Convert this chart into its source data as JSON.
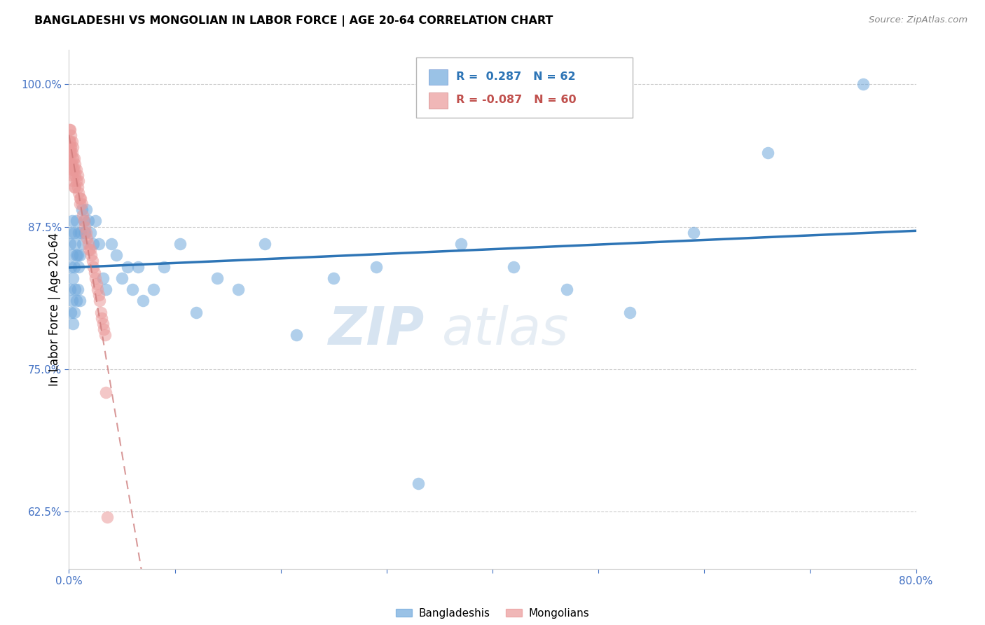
{
  "title": "BANGLADESHI VS MONGOLIAN IN LABOR FORCE | AGE 20-64 CORRELATION CHART",
  "source": "Source: ZipAtlas.com",
  "ylabel": "In Labor Force | Age 20-64",
  "x_min": 0.0,
  "x_max": 0.8,
  "y_min": 0.575,
  "y_max": 1.03,
  "x_ticks": [
    0.0,
    0.1,
    0.2,
    0.3,
    0.4,
    0.5,
    0.6,
    0.7,
    0.8
  ],
  "x_tick_labels": [
    "0.0%",
    "",
    "",
    "",
    "",
    "",
    "",
    "",
    "80.0%"
  ],
  "y_ticks": [
    0.625,
    0.75,
    0.875,
    1.0
  ],
  "y_tick_labels": [
    "62.5%",
    "75.0%",
    "87.5%",
    "100.0%"
  ],
  "bangladeshi_color": "#6fa8dc",
  "bangladeshi_edge": "#4a86c8",
  "mongolian_color": "#ea9999",
  "mongolian_edge": "#d06060",
  "trend_blue": "#2e75b6",
  "trend_pink": "#cc7777",
  "watermark_zip": "ZIP",
  "watermark_atlas": "atlas",
  "legend_r_blue": " 0.287",
  "legend_n_blue": "62",
  "legend_r_pink": "-0.087",
  "legend_n_pink": "60",
  "legend_label_blue": "Bangladeshis",
  "legend_label_pink": "Mongolians",
  "bangladeshi_x": [
    0.001,
    0.001,
    0.002,
    0.002,
    0.002,
    0.003,
    0.003,
    0.003,
    0.004,
    0.004,
    0.005,
    0.005,
    0.005,
    0.006,
    0.006,
    0.007,
    0.007,
    0.007,
    0.008,
    0.008,
    0.009,
    0.009,
    0.01,
    0.01,
    0.011,
    0.012,
    0.013,
    0.014,
    0.015,
    0.016,
    0.018,
    0.02,
    0.023,
    0.025,
    0.028,
    0.032,
    0.035,
    0.04,
    0.045,
    0.05,
    0.055,
    0.06,
    0.065,
    0.07,
    0.08,
    0.09,
    0.105,
    0.12,
    0.14,
    0.16,
    0.185,
    0.215,
    0.25,
    0.29,
    0.33,
    0.37,
    0.42,
    0.47,
    0.53,
    0.59,
    0.66,
    0.75
  ],
  "bangladeshi_y": [
    0.82,
    0.86,
    0.8,
    0.84,
    0.87,
    0.81,
    0.85,
    0.88,
    0.79,
    0.83,
    0.8,
    0.84,
    0.87,
    0.82,
    0.86,
    0.81,
    0.85,
    0.88,
    0.82,
    0.85,
    0.84,
    0.87,
    0.81,
    0.85,
    0.87,
    0.89,
    0.86,
    0.88,
    0.87,
    0.89,
    0.88,
    0.87,
    0.86,
    0.88,
    0.86,
    0.83,
    0.82,
    0.86,
    0.85,
    0.83,
    0.84,
    0.82,
    0.84,
    0.81,
    0.82,
    0.84,
    0.86,
    0.8,
    0.83,
    0.82,
    0.86,
    0.78,
    0.83,
    0.84,
    0.65,
    0.86,
    0.84,
    0.82,
    0.8,
    0.87,
    0.94,
    1.0
  ],
  "mongolian_x": [
    0.0005,
    0.0005,
    0.001,
    0.001,
    0.001,
    0.001,
    0.001,
    0.002,
    0.002,
    0.002,
    0.002,
    0.002,
    0.003,
    0.003,
    0.003,
    0.003,
    0.004,
    0.004,
    0.004,
    0.004,
    0.005,
    0.005,
    0.005,
    0.006,
    0.006,
    0.006,
    0.007,
    0.007,
    0.008,
    0.008,
    0.009,
    0.009,
    0.01,
    0.01,
    0.011,
    0.012,
    0.013,
    0.014,
    0.015,
    0.016,
    0.017,
    0.018,
    0.019,
    0.02,
    0.021,
    0.022,
    0.023,
    0.024,
    0.025,
    0.026,
    0.027,
    0.028,
    0.029,
    0.03,
    0.031,
    0.032,
    0.033,
    0.034,
    0.035,
    0.036
  ],
  "mongolian_y": [
    0.96,
    0.95,
    0.96,
    0.95,
    0.945,
    0.94,
    0.93,
    0.955,
    0.945,
    0.94,
    0.93,
    0.925,
    0.95,
    0.94,
    0.93,
    0.92,
    0.945,
    0.935,
    0.925,
    0.915,
    0.935,
    0.925,
    0.91,
    0.93,
    0.92,
    0.91,
    0.925,
    0.915,
    0.92,
    0.91,
    0.915,
    0.905,
    0.9,
    0.895,
    0.9,
    0.895,
    0.885,
    0.88,
    0.875,
    0.87,
    0.865,
    0.86,
    0.855,
    0.855,
    0.85,
    0.845,
    0.84,
    0.835,
    0.83,
    0.825,
    0.82,
    0.815,
    0.81,
    0.8,
    0.795,
    0.79,
    0.785,
    0.78,
    0.73,
    0.62
  ]
}
